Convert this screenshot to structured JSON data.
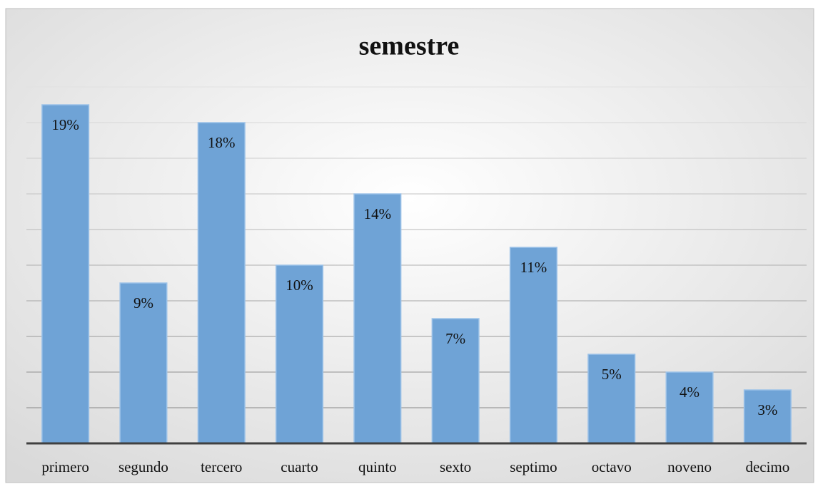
{
  "chart_data": {
    "type": "bar",
    "title": "semestre",
    "categories": [
      "primero",
      "segundo",
      "tercero",
      "cuarto",
      "quinto",
      "sexto",
      "septimo",
      "octavo",
      "noveno",
      "decimo"
    ],
    "values": [
      19,
      9,
      18,
      10,
      14,
      7,
      11,
      5,
      4,
      3
    ],
    "value_labels": [
      "19%",
      "9%",
      "18%",
      "10%",
      "14%",
      "7%",
      "11%",
      "5%",
      "4%",
      "3%"
    ],
    "color": "#6fa3d6",
    "ylim": [
      0,
      20
    ],
    "yticks": [
      0,
      2,
      4,
      6,
      8,
      10,
      12,
      14,
      16,
      18,
      20
    ],
    "grid": true
  }
}
